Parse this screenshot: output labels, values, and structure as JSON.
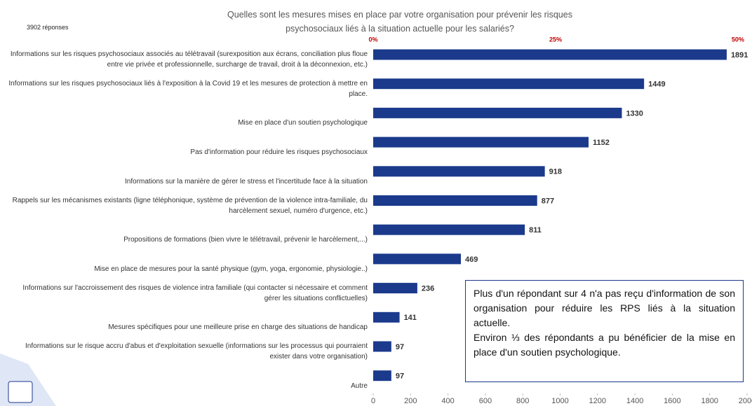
{
  "chart_data": {
    "type": "barh",
    "title": "Quelles sont les mesures mises en place par votre organisation pour prévenir les risques psychosociaux liés à la situation actuelle pour les salariés?",
    "subtitle": "3902 réponses",
    "categories": [
      "Informations sur les risques psychosociaux associés au télétravail (surexposition aux écrans, conciliation plus floue entre vie privée et professionnelle, surcharge de travail, droit à la déconnexion, etc.)",
      "Informations sur les risques psychosociaux liés à l'exposition à la Covid 19 et les mesures de protection à mettre en place.",
      "Mise en place d'un soutien psychologique",
      "Pas d'information pour réduire les risques psychosociaux",
      "Informations sur la manière de gérer le stress et l'incertitude face à la situation",
      "Rappels sur les mécanismes existants (ligne téléphonique, système de prévention de la violence intra-familiale, du harcèlement sexuel, numéro d'urgence, etc.)",
      "Propositions de formations (bien vivre le télétravail, prévenir le harcèlement,...)",
      "Mise en place de mesures pour la santé physique (gym, yoga, ergonomie, physiologie..)",
      "Informations sur l'accroissement des risques de violence intra familiale (qui contacter si nécessaire et comment gérer les situations conflictuelles)",
      "Mesures spécifiques pour une meilleure prise en charge des situations de handicap",
      "Informations sur le risque accru d'abus et d'exploitation sexuelle (informations sur les processus qui pourraient exister dans votre organisation)",
      "Autre"
    ],
    "values": [
      1891,
      1449,
      1330,
      1152,
      918,
      877,
      811,
      469,
      236,
      141,
      97,
      97
    ],
    "color": "#1b3a8c",
    "xlim": [
      0,
      2000
    ],
    "xticks": [
      0,
      200,
      400,
      600,
      800,
      1000,
      1200,
      1400,
      1600,
      1800,
      2000
    ],
    "x2lim": [
      0,
      51.26
    ],
    "x2ticks": [
      {
        "value": 0,
        "label": "0%"
      },
      {
        "value": 25,
        "label": "25%"
      },
      {
        "value": 50,
        "label": "50%"
      }
    ],
    "x2color": "#c00000",
    "annotation": [
      "Plus d'un répondant sur 4 n'a pas reçu d'information de son organisation pour réduire les RPS liés à la situation actuelle.",
      "Environ ⅓ des répondants a pu bénéficier de la mise en place d'un soutien psychologique."
    ]
  }
}
